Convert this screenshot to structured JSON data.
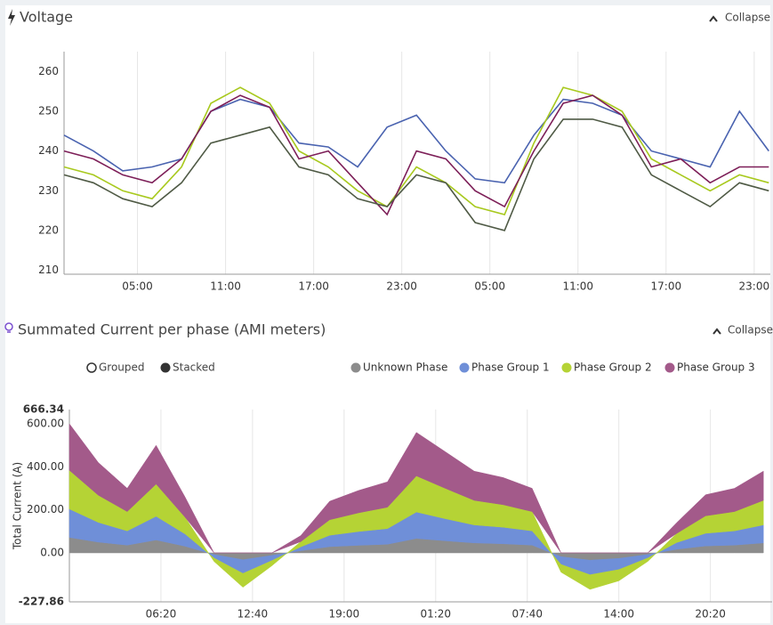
{
  "ui": {
    "collapse": [
      "Collapse",
      "Collapse"
    ],
    "modes": [
      "Grouped",
      "Stacked"
    ],
    "selected_mode": 1
  },
  "chart_data": [
    {
      "type": "line",
      "title": "Voltage",
      "x": [
        0,
        2,
        4,
        6,
        8,
        10,
        12,
        14,
        16,
        18,
        20,
        22,
        24,
        26,
        28,
        30,
        32,
        34,
        36,
        38,
        40,
        42,
        44,
        46,
        48
      ],
      "xlim": [
        0,
        48.1
      ],
      "xticks": [
        {
          "value": 5,
          "label": "05:00"
        },
        {
          "value": 11,
          "label": "11:00"
        },
        {
          "value": 17,
          "label": "17:00"
        },
        {
          "value": 23,
          "label": "23:00"
        },
        {
          "value": 29,
          "label": "05:00"
        },
        {
          "value": 35,
          "label": "11:00"
        },
        {
          "value": 41,
          "label": "17:00"
        },
        {
          "value": 47,
          "label": "23:00"
        }
      ],
      "ylim": [
        209,
        265
      ],
      "yticks": [
        210,
        220,
        230,
        240,
        250,
        260
      ],
      "grid": "x",
      "series": [
        {
          "color": "#4a63b0",
          "values": [
            244,
            240,
            235,
            236,
            238,
            250,
            253,
            251,
            242,
            241,
            236,
            246,
            249,
            240,
            233,
            232,
            244,
            253,
            252,
            249,
            240,
            238,
            236,
            250,
            240
          ]
        },
        {
          "color": "#a8c91e",
          "values": [
            236,
            234,
            230,
            228,
            236,
            252,
            256,
            252,
            240,
            236,
            230,
            226,
            236,
            232,
            226,
            224,
            242,
            256,
            254,
            250,
            238,
            234,
            230,
            234,
            232
          ]
        },
        {
          "color": "#7d1f58",
          "values": [
            240,
            238,
            234,
            232,
            238,
            250,
            254,
            251,
            238,
            240,
            232,
            224,
            240,
            238,
            230,
            226,
            240,
            252,
            254,
            249,
            236,
            238,
            232,
            236,
            236
          ]
        },
        {
          "color": "#4f5a45",
          "values": [
            234,
            232,
            228,
            226,
            232,
            242,
            244,
            246,
            236,
            234,
            228,
            226,
            234,
            232,
            222,
            220,
            238,
            248,
            248,
            246,
            234,
            230,
            226,
            232,
            230
          ]
        }
      ]
    },
    {
      "type": "stacked-area",
      "title": "Summated Current per phase (AMI meters)",
      "y_label": "Total Current (A)",
      "legend": "top-right",
      "x": [
        0,
        2,
        4,
        6,
        8,
        10,
        12,
        14,
        16,
        18,
        20,
        22,
        24,
        26,
        28,
        30,
        32,
        34,
        36,
        38,
        40,
        42,
        44,
        46,
        48
      ],
      "xlim": [
        0,
        48.6
      ],
      "xticks": [
        {
          "value": 6.333,
          "label": "06:20"
        },
        {
          "value": 12.667,
          "label": "12:40"
        },
        {
          "value": 19,
          "label": "19:00"
        },
        {
          "value": 25.333,
          "label": "01:20"
        },
        {
          "value": 31.667,
          "label": "07:40"
        },
        {
          "value": 38,
          "label": "14:00"
        },
        {
          "value": 44.333,
          "label": "20:20"
        }
      ],
      "ylim": [
        -227.86,
        666.34
      ],
      "yticks": [
        666.34,
        {
          "value": 600,
          "label": "600.00"
        },
        {
          "value": 400,
          "label": "400.00"
        },
        {
          "value": 200,
          "label": "200.00"
        },
        {
          "value": 0,
          "label": "0.00"
        },
        -227.86
      ],
      "grid": "x",
      "series": [
        {
          "name": "Unknown Phase",
          "color": "#8c8c8c",
          "values": [
            72,
            50,
            36,
            60,
            31,
            -8,
            -32,
            -12,
            10,
            29,
            35,
            40,
            67,
            56,
            46,
            42,
            36,
            -18,
            -34,
            -26,
            -8,
            17,
            32,
            36,
            46
          ]
        },
        {
          "name": "Phase Group 1",
          "color": "#6f8fd8",
          "values": [
            132,
            92,
            66,
            110,
            57,
            -16,
            -64,
            -24,
            18,
            53,
            64,
            73,
            123,
            103,
            84,
            77,
            66,
            -36,
            -68,
            -52,
            -16,
            31,
            59,
            66,
            84
          ]
        },
        {
          "name": "Phase Group 2",
          "color": "#b5d335",
          "values": [
            180,
            126,
            90,
            150,
            78,
            -16,
            -64,
            -24,
            24,
            72,
            87,
            99,
            168,
            141,
            114,
            105,
            90,
            -36,
            -68,
            -52,
            -16,
            42,
            81,
            90,
            114
          ]
        },
        {
          "name": "Phase Group 3",
          "color": "#a35a8a",
          "values": [
            216,
            152,
            108,
            180,
            94,
            0,
            0,
            0,
            28,
            86,
            104,
            118,
            202,
            170,
            136,
            126,
            108,
            0,
            0,
            0,
            0,
            50,
            98,
            108,
            136
          ]
        }
      ]
    }
  ]
}
